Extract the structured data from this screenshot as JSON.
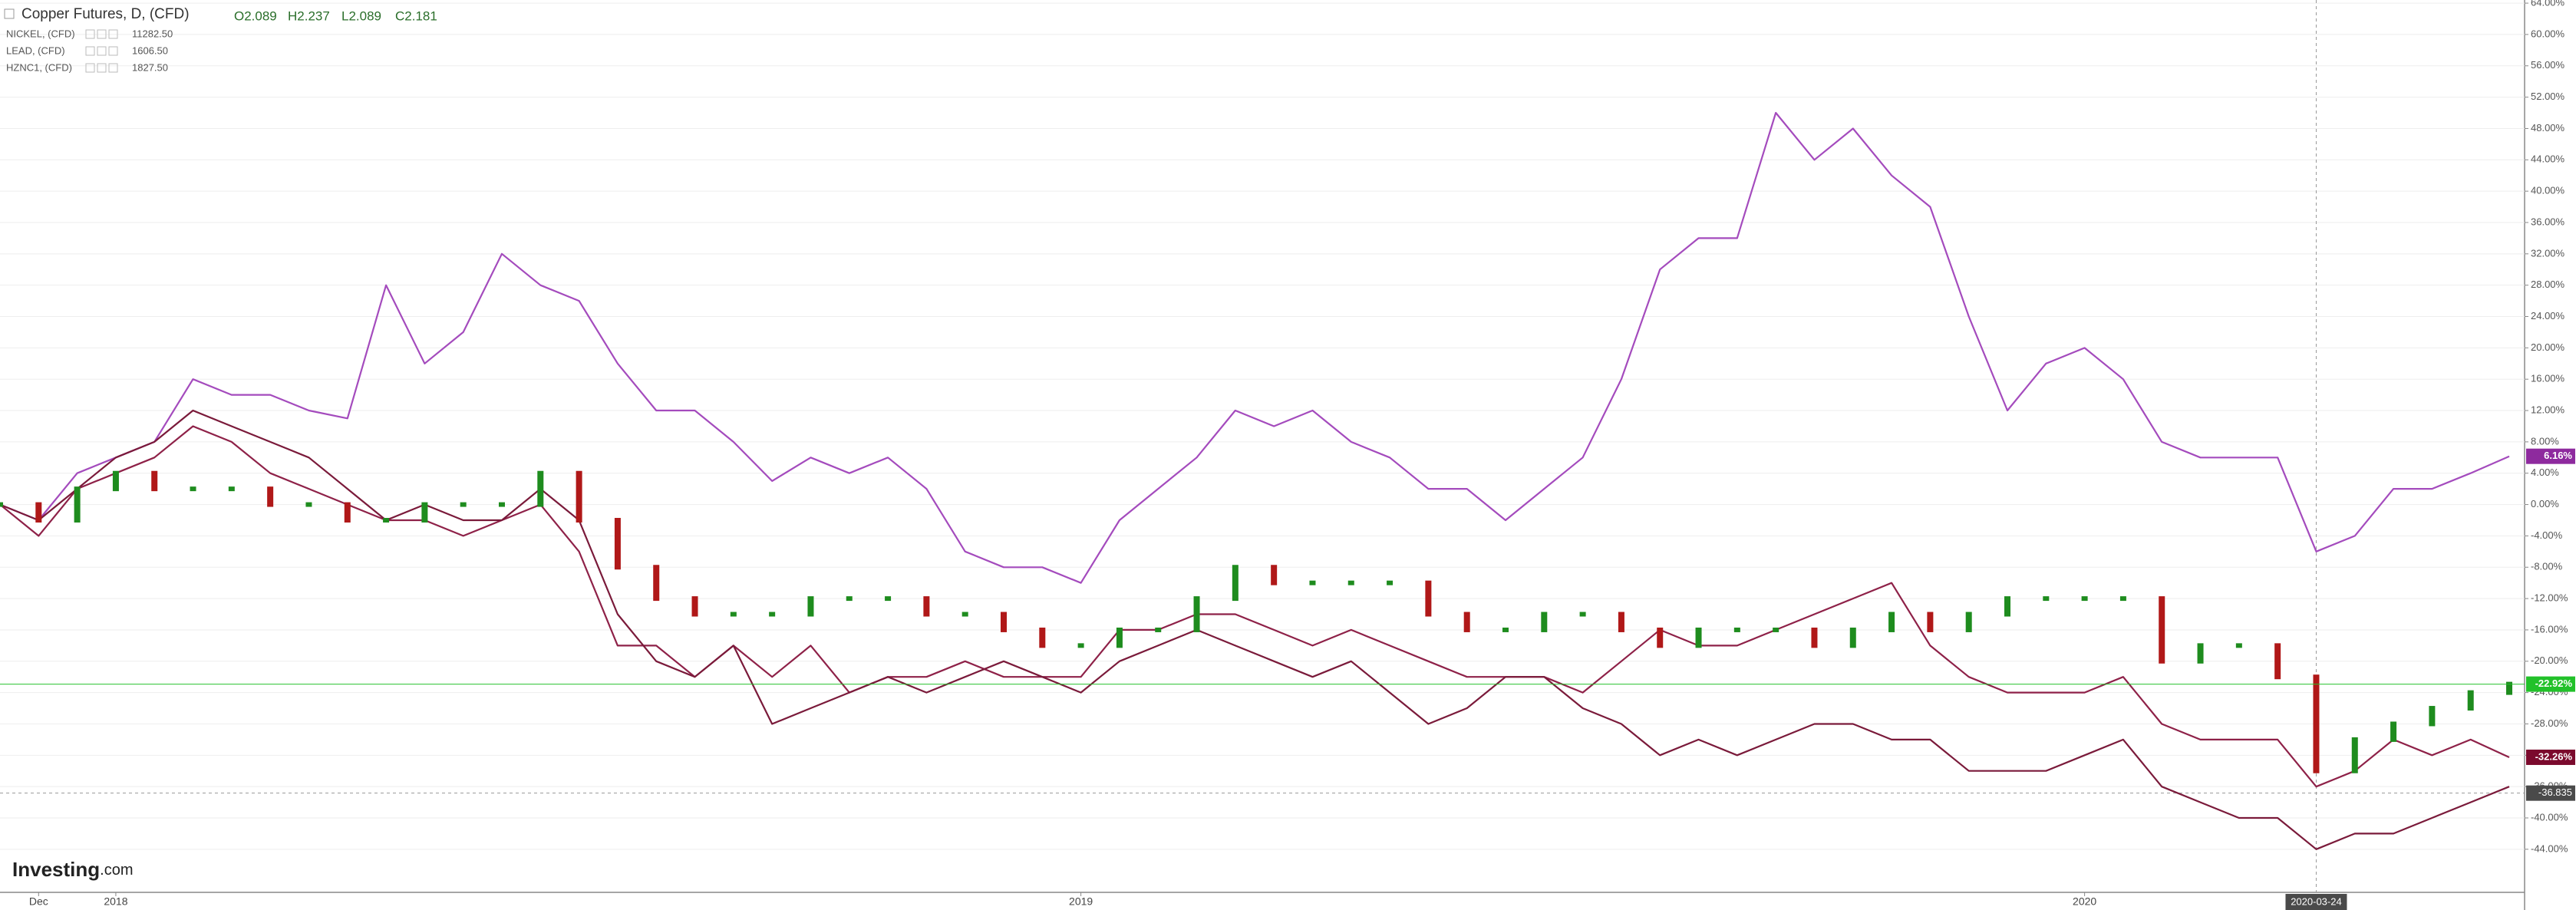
{
  "chart_data": {
    "type": "line",
    "title": "Copper Futures, D, (CFD)",
    "ohlc": [
      "O2.089",
      "H2.237",
      "L2.089",
      "C2.181"
    ],
    "logo": {
      "main": "Investing",
      "suffix": ".com"
    },
    "categories": [
      null,
      "Dec",
      null,
      "2018",
      null,
      null,
      null,
      null,
      null,
      null,
      null,
      null,
      null,
      null,
      null,
      null,
      null,
      null,
      null,
      null,
      null,
      null,
      null,
      null,
      null,
      null,
      null,
      null,
      "2019",
      null,
      null,
      null,
      null,
      null,
      null,
      null,
      null,
      null,
      null,
      null,
      null,
      null,
      null,
      null,
      null,
      null,
      null,
      null,
      null,
      null,
      null,
      null,
      null,
      null,
      "2020",
      null,
      null,
      null,
      null,
      null,
      "2020-03-24",
      null,
      null,
      null,
      null,
      null
    ],
    "crosshair_category": 60,
    "crosshair_y": -36.835,
    "ylim": [
      -49.5,
      64.4
    ],
    "yticks": [
      {
        "value": 64,
        "label": "64.00%"
      },
      {
        "value": 60,
        "label": "60.00%"
      },
      {
        "value": 56,
        "label": "56.00%"
      },
      {
        "value": 52,
        "label": "52.00%"
      },
      {
        "value": 48,
        "label": "48.00%"
      },
      {
        "value": 44,
        "label": "44.00%"
      },
      {
        "value": 40,
        "label": "40.00%"
      },
      {
        "value": 36,
        "label": "36.00%"
      },
      {
        "value": 32,
        "label": "32.00%"
      },
      {
        "value": 28,
        "label": "28.00%"
      },
      {
        "value": 24,
        "label": "24.00%"
      },
      {
        "value": 20,
        "label": "20.00%"
      },
      {
        "value": 16,
        "label": "16.00%"
      },
      {
        "value": 12,
        "label": "12.00%"
      },
      {
        "value": 8,
        "label": "8.00%"
      },
      {
        "value": 4,
        "label": "4.00%"
      },
      {
        "value": 0,
        "label": "0.00%"
      },
      {
        "value": -4,
        "label": "-4.00%"
      },
      {
        "value": -8,
        "label": "-8.00%"
      },
      {
        "value": -12,
        "label": "-12.00%"
      },
      {
        "value": -16,
        "label": "-16.00%"
      },
      {
        "value": -20,
        "label": "-20.00%"
      },
      {
        "value": -24,
        "label": "-24.00%"
      },
      {
        "value": -28,
        "label": "-28.00%"
      },
      {
        "value": -32,
        "label": "-32.00%"
      },
      {
        "value": -36,
        "label": "-36.00%"
      },
      {
        "value": -40,
        "label": "-40.00%"
      },
      {
        "value": -44,
        "label": "-44.00%"
      }
    ],
    "grid": true,
    "series": [
      {
        "name": "Copper Futures, D, (CFD)",
        "style": "candle",
        "color": "#1e8c1e",
        "down_color": "#b01818",
        "price_label": "-22.92%",
        "label_color": "#22c12a",
        "values": [
          0,
          -2,
          2,
          4,
          2,
          2,
          2,
          0,
          0,
          -2,
          -2,
          0,
          0,
          0,
          4,
          -2,
          -8,
          -12,
          -14,
          -14,
          -14,
          -12,
          -12,
          -12,
          -14,
          -14,
          -16,
          -18,
          -18,
          -16,
          -16,
          -12,
          -8,
          -10,
          -10,
          -10,
          -10,
          -14,
          -16,
          -16,
          -14,
          -14,
          -16,
          -18,
          -16,
          -16,
          -16,
          -18,
          -16,
          -14,
          -16,
          -14,
          -12,
          -12,
          -12,
          -12,
          -20,
          -18,
          -18,
          -22,
          -34,
          -30,
          -28,
          -26,
          -24,
          -22.92
        ]
      },
      {
        "name": "NICKEL, (CFD)",
        "quote": "11282.50",
        "color": "#a44bbd",
        "price_label": "6.16%",
        "label_color": "#8e2a9e",
        "values": [
          0,
          -2,
          4,
          6,
          8,
          16,
          14,
          14,
          12,
          11,
          28,
          18,
          22,
          32,
          28,
          26,
          18,
          12,
          12,
          8,
          3,
          6,
          4,
          6,
          2,
          -6,
          -8,
          -8,
          -10,
          -2,
          2,
          6,
          12,
          10,
          12,
          8,
          6,
          2,
          2,
          -2,
          2,
          6,
          16,
          30,
          34,
          34,
          50,
          44,
          48,
          42,
          38,
          24,
          12,
          18,
          20,
          16,
          8,
          6,
          6,
          6,
          -6,
          -4,
          2,
          2,
          4,
          6.16
        ]
      },
      {
        "name": "LEAD, (CFD)",
        "quote": "1606.50",
        "color": "#8e2148",
        "price_label": "-32.26%",
        "label_color": "#7b0a2d",
        "values": [
          0,
          -4,
          2,
          4,
          6,
          10,
          8,
          4,
          2,
          0,
          -2,
          -2,
          -4,
          -2,
          0,
          -6,
          -18,
          -18,
          -22,
          -18,
          -22,
          -18,
          -24,
          -22,
          -22,
          -20,
          -22,
          -22,
          -22,
          -16,
          -16,
          -14,
          -14,
          -16,
          -18,
          -16,
          -18,
          -20,
          -22,
          -22,
          -22,
          -24,
          -20,
          -16,
          -18,
          -18,
          -16,
          -14,
          -12,
          -10,
          -18,
          -22,
          -24,
          -24,
          -24,
          -22,
          -28,
          -30,
          -30,
          -30,
          -36,
          -34,
          -30,
          -32,
          -30,
          -32.26
        ]
      },
      {
        "name": "HZNC1, (CFD)",
        "quote": "1827.50",
        "color": "#7a1a3a",
        "values": [
          0,
          -2,
          2,
          6,
          8,
          12,
          10,
          8,
          6,
          2,
          -2,
          0,
          -2,
          -2,
          2,
          -2,
          -14,
          -20,
          -22,
          -18,
          -28,
          -26,
          -24,
          -22,
          -24,
          -22,
          -20,
          -22,
          -24,
          -20,
          -18,
          -16,
          -18,
          -20,
          -22,
          -20,
          -24,
          -28,
          -26,
          -22,
          -22,
          -26,
          -28,
          -32,
          -30,
          -32,
          -30,
          -28,
          -28,
          -30,
          -30,
          -34,
          -34,
          -34,
          -32,
          -30,
          -36,
          -38,
          -40,
          -40,
          -44,
          -42,
          -42,
          -40,
          -38,
          -36
        ]
      }
    ]
  }
}
